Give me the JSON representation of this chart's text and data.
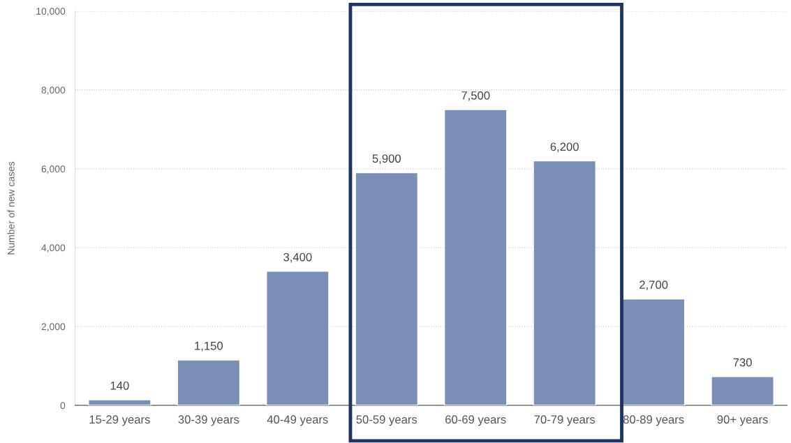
{
  "chart_data": {
    "type": "bar",
    "ylabel": "Number of new cases",
    "categories": [
      "15-29 years",
      "30-39 years",
      "40-49 years",
      "50-59 years",
      "60-69 years",
      "70-79 years",
      "80-89 years",
      "90+ years"
    ],
    "values": [
      140,
      1150,
      3400,
      5900,
      7500,
      6200,
      2700,
      730
    ],
    "value_labels": [
      "140",
      "1,150",
      "3,400",
      "5,900",
      "7,500",
      "6,200",
      "2,700",
      "730"
    ],
    "color": "#7b8fb6",
    "ylim": [
      0,
      10000
    ],
    "yticks": [
      {
        "value": 0,
        "label": "0"
      },
      {
        "value": 2000,
        "label": "2,000"
      },
      {
        "value": 4000,
        "label": "4,000"
      },
      {
        "value": 6000,
        "label": "6,000"
      },
      {
        "value": 8000,
        "label": "8,000"
      },
      {
        "value": 10000,
        "label": "10,000"
      }
    ],
    "grid": "y"
  }
}
